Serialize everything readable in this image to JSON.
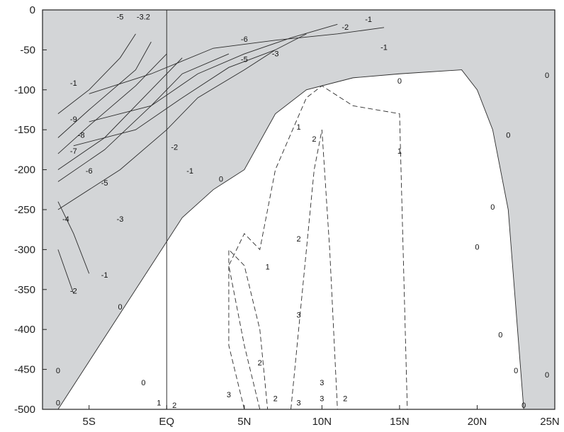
{
  "chart_data": {
    "type": "contour",
    "title": "",
    "xlabel": "",
    "ylabel": "",
    "x_ticks": [
      {
        "value": -5,
        "label": "5S"
      },
      {
        "value": 0,
        "label": "EQ"
      },
      {
        "value": 5,
        "label": "5N"
      },
      {
        "value": 10,
        "label": "10N"
      },
      {
        "value": 15,
        "label": "15N"
      },
      {
        "value": 20,
        "label": "20N"
      },
      {
        "value": 25,
        "label": "25N"
      }
    ],
    "y_ticks": [
      {
        "value": 0,
        "label": "0"
      },
      {
        "value": -50,
        "label": "-50"
      },
      {
        "value": -100,
        "label": "-100"
      },
      {
        "value": -150,
        "label": "-150"
      },
      {
        "value": -200,
        "label": "-200"
      },
      {
        "value": -250,
        "label": "-250"
      },
      {
        "value": -300,
        "label": "-300"
      },
      {
        "value": -350,
        "label": "-350"
      },
      {
        "value": -400,
        "label": "-400"
      },
      {
        "value": -450,
        "label": "-450"
      },
      {
        "value": -500,
        "label": "-500"
      }
    ],
    "xlim": [
      -8,
      25
    ],
    "ylim": [
      -500,
      0
    ],
    "equator_line": 0,
    "shading": "negative values shaded light grey",
    "colors": {
      "shade": "#d3d5d7",
      "line": "#2b2b2b",
      "background": "#ffffff"
    },
    "contours": [
      {
        "level": -1,
        "style": "solid",
        "points": [
          [
            -5,
            -105
          ],
          [
            -1,
            -80
          ],
          [
            3,
            -48
          ],
          [
            7,
            -38
          ],
          [
            11,
            -30
          ],
          [
            14,
            -22
          ]
        ]
      },
      {
        "level": -2,
        "style": "solid",
        "points": [
          [
            -5,
            -140
          ],
          [
            -1,
            -120
          ],
          [
            2,
            -80
          ],
          [
            5,
            -55
          ],
          [
            8,
            -35
          ],
          [
            11,
            -18
          ]
        ]
      },
      {
        "level": -3,
        "style": "solid",
        "points": [
          [
            -6,
            -170
          ],
          [
            -2,
            -150
          ],
          [
            1,
            -110
          ],
          [
            4,
            -72
          ],
          [
            7,
            -50
          ],
          [
            9,
            -30
          ]
        ]
      },
      {
        "level": -4,
        "style": "solid",
        "points": [
          [
            -7,
            -250
          ],
          [
            -3,
            -200
          ],
          [
            0,
            -150
          ],
          [
            2,
            -110
          ],
          [
            5,
            -75
          ],
          [
            7,
            -50
          ]
        ]
      },
      {
        "level": -5,
        "style": "solid",
        "points": [
          [
            -7,
            -215
          ],
          [
            -4,
            -175
          ],
          [
            -1,
            -120
          ],
          [
            1,
            -80
          ],
          [
            4,
            -55
          ]
        ]
      },
      {
        "level": -6,
        "style": "solid",
        "points": [
          [
            -7,
            -200
          ],
          [
            -4,
            -160
          ],
          [
            -1,
            -100
          ],
          [
            1,
            -60
          ]
        ]
      },
      {
        "level": -7,
        "style": "solid",
        "points": [
          [
            -7,
            -180
          ],
          [
            -5,
            -145
          ],
          [
            -2,
            -95
          ],
          [
            0,
            -55
          ]
        ]
      },
      {
        "level": -8,
        "style": "solid",
        "points": [
          [
            -7,
            -160
          ],
          [
            -5,
            -125
          ],
          [
            -2,
            -75
          ],
          [
            -1,
            -40
          ]
        ]
      },
      {
        "level": -9,
        "style": "solid",
        "points": [
          [
            -7,
            -130
          ],
          [
            -5,
            -100
          ],
          [
            -3,
            -60
          ],
          [
            -2,
            -30
          ]
        ]
      },
      {
        "level": -1,
        "style": "solid",
        "points": [
          [
            -5,
            -330
          ],
          [
            -6,
            -280
          ],
          [
            -7,
            -240
          ]
        ]
      },
      {
        "level": -2,
        "style": "solid",
        "points": [
          [
            -6,
            -355
          ],
          [
            -7,
            -300
          ]
        ]
      },
      {
        "level": 0,
        "style": "solid",
        "points": [
          [
            -7,
            -500
          ],
          [
            -5,
            -440
          ],
          [
            -3,
            -380
          ],
          [
            -1,
            -320
          ],
          [
            1,
            -260
          ],
          [
            3,
            -225
          ],
          [
            5,
            -200
          ],
          [
            7,
            -130
          ],
          [
            9,
            -100
          ],
          [
            12,
            -85
          ],
          [
            15,
            -80
          ],
          [
            19,
            -75
          ],
          [
            20,
            -100
          ],
          [
            21,
            -150
          ],
          [
            22,
            -250
          ],
          [
            23,
            -500
          ]
        ]
      },
      {
        "level": 1,
        "style": "dashed",
        "points": [
          [
            6,
            -500
          ],
          [
            5,
            -420
          ],
          [
            4,
            -320
          ],
          [
            5,
            -280
          ],
          [
            6,
            -300
          ],
          [
            7,
            -200
          ],
          [
            9,
            -110
          ],
          [
            10,
            -95
          ],
          [
            12,
            -120
          ],
          [
            15,
            -130
          ],
          [
            15.5,
            -500
          ]
        ]
      },
      {
        "level": 2,
        "style": "dashed",
        "points": [
          [
            5,
            -500
          ],
          [
            4,
            -420
          ],
          [
            4,
            -300
          ],
          [
            5,
            -320
          ],
          [
            6,
            -400
          ],
          [
            6.5,
            -500
          ]
        ]
      },
      {
        "level": 3,
        "style": "dashed",
        "points": [
          [
            8,
            -500
          ],
          [
            8.5,
            -400
          ],
          [
            9,
            -300
          ],
          [
            9.5,
            -200
          ],
          [
            10,
            -150
          ],
          [
            10.5,
            -300
          ],
          [
            11,
            -500
          ]
        ]
      }
    ],
    "contour_labels": [
      {
        "text": "-1",
        "x": 13,
        "y": -15
      },
      {
        "text": "-2",
        "x": 11.5,
        "y": -25
      },
      {
        "text": "-1",
        "x": 14,
        "y": -50
      },
      {
        "text": "-3",
        "x": 7,
        "y": -58
      },
      {
        "text": "-5",
        "x": 5,
        "y": -65
      },
      {
        "text": "-6",
        "x": 5,
        "y": -40
      },
      {
        "text": "-5",
        "x": -3,
        "y": -12
      },
      {
        "text": "-3.2",
        "x": -1.5,
        "y": -12
      },
      {
        "text": "-1",
        "x": -6,
        "y": -95
      },
      {
        "text": "-9",
        "x": -6,
        "y": -140
      },
      {
        "text": "-8",
        "x": -5.5,
        "y": -160
      },
      {
        "text": "-7",
        "x": -6,
        "y": -180
      },
      {
        "text": "-6",
        "x": -5,
        "y": -205
      },
      {
        "text": "-5",
        "x": -4,
        "y": -220
      },
      {
        "text": "-4",
        "x": -6.5,
        "y": -265
      },
      {
        "text": "-3",
        "x": -3,
        "y": -265
      },
      {
        "text": "-2",
        "x": -6,
        "y": -355
      },
      {
        "text": "-1",
        "x": -4,
        "y": -335
      },
      {
        "text": "-2",
        "x": 0.5,
        "y": -175
      },
      {
        "text": "-1",
        "x": 1.5,
        "y": -205
      },
      {
        "text": "0",
        "x": 3.5,
        "y": -215
      },
      {
        "text": "0",
        "x": 15,
        "y": -92
      },
      {
        "text": "0",
        "x": -3,
        "y": -375
      },
      {
        "text": "0",
        "x": -7,
        "y": -455
      },
      {
        "text": "0",
        "x": -7,
        "y": -495
      },
      {
        "text": "0",
        "x": -1.5,
        "y": -470
      },
      {
        "text": "1",
        "x": 6.5,
        "y": -325
      },
      {
        "text": "1",
        "x": 8.5,
        "y": -150
      },
      {
        "text": "2",
        "x": 9.5,
        "y": -165
      },
      {
        "text": "1",
        "x": 15,
        "y": -180
      },
      {
        "text": "2",
        "x": 8.5,
        "y": -290
      },
      {
        "text": "3",
        "x": 8.5,
        "y": -385
      },
      {
        "text": "2",
        "x": 6,
        "y": -445
      },
      {
        "text": "3",
        "x": 4,
        "y": -485
      },
      {
        "text": "2",
        "x": 7,
        "y": -490
      },
      {
        "text": "3",
        "x": 10,
        "y": -470
      },
      {
        "text": "3",
        "x": 10,
        "y": -490
      },
      {
        "text": "2",
        "x": 11.5,
        "y": -490
      },
      {
        "text": "3",
        "x": 8.5,
        "y": -495
      },
      {
        "text": "0",
        "x": 20,
        "y": -300
      },
      {
        "text": "0",
        "x": 21,
        "y": -250
      },
      {
        "text": "0",
        "x": 22,
        "y": -160
      },
      {
        "text": "0",
        "x": 21.5,
        "y": -410
      },
      {
        "text": "0",
        "x": 22.5,
        "y": -455
      },
      {
        "text": "0",
        "x": 24.5,
        "y": -460
      },
      {
        "text": "0",
        "x": 24.5,
        "y": -85
      },
      {
        "text": "0",
        "x": 23,
        "y": -500
      },
      {
        "text": "1",
        "x": -0.5,
        "y": -495
      },
      {
        "text": "2",
        "x": 0.5,
        "y": -505
      }
    ]
  }
}
